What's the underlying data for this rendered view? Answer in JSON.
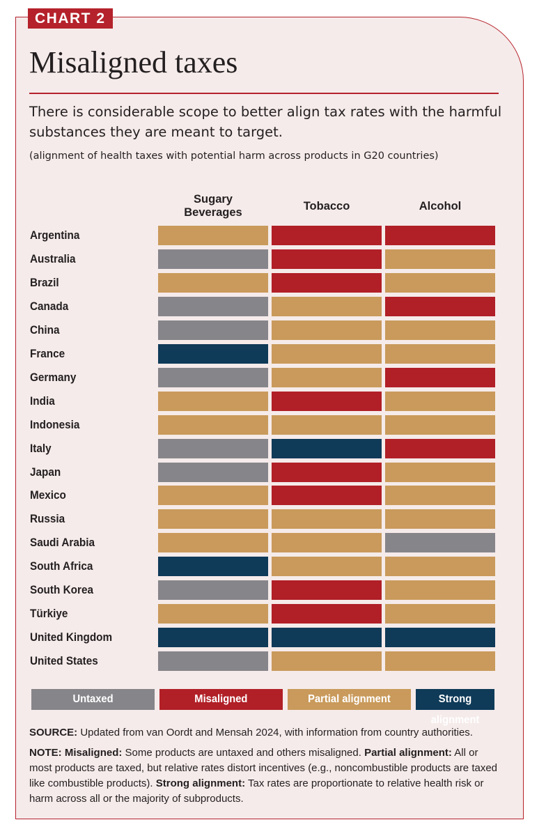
{
  "header": {
    "tag": "CHART 2",
    "title": "Misaligned taxes",
    "subtitle": "There is considerable scope to better align tax rates with the harmful substances they are meant to target.",
    "note": "(alignment of health taxes with potential harm across products in G20 countries)"
  },
  "colors": {
    "Untaxed": "#86858a",
    "Misaligned": "#b11f27",
    "Partial alignment": "#c99a5b",
    "Strong alignment": "#0f3a58"
  },
  "chart_data": {
    "type": "table",
    "columns": [
      "Sugary Beverages",
      "Tobacco",
      "Alcohol"
    ],
    "rows": [
      {
        "country": "Argentina",
        "values": [
          "Partial alignment",
          "Misaligned",
          "Misaligned"
        ]
      },
      {
        "country": "Australia",
        "values": [
          "Untaxed",
          "Misaligned",
          "Partial alignment"
        ]
      },
      {
        "country": "Brazil",
        "values": [
          "Partial alignment",
          "Misaligned",
          "Partial alignment"
        ]
      },
      {
        "country": "Canada",
        "values": [
          "Untaxed",
          "Partial alignment",
          "Misaligned"
        ]
      },
      {
        "country": "China",
        "values": [
          "Untaxed",
          "Partial alignment",
          "Partial alignment"
        ]
      },
      {
        "country": "France",
        "values": [
          "Strong alignment",
          "Partial alignment",
          "Partial alignment"
        ]
      },
      {
        "country": "Germany",
        "values": [
          "Untaxed",
          "Partial alignment",
          "Misaligned"
        ]
      },
      {
        "country": "India",
        "values": [
          "Partial alignment",
          "Misaligned",
          "Partial alignment"
        ]
      },
      {
        "country": "Indonesia",
        "values": [
          "Partial alignment",
          "Partial alignment",
          "Partial alignment"
        ]
      },
      {
        "country": "Italy",
        "values": [
          "Untaxed",
          "Strong alignment",
          "Misaligned"
        ]
      },
      {
        "country": "Japan",
        "values": [
          "Untaxed",
          "Misaligned",
          "Partial alignment"
        ]
      },
      {
        "country": "Mexico",
        "values": [
          "Partial alignment",
          "Misaligned",
          "Partial alignment"
        ]
      },
      {
        "country": "Russia",
        "values": [
          "Partial alignment",
          "Partial alignment",
          "Partial alignment"
        ]
      },
      {
        "country": "Saudi Arabia",
        "values": [
          "Partial alignment",
          "Partial alignment",
          "Untaxed"
        ]
      },
      {
        "country": "South Africa",
        "values": [
          "Strong alignment",
          "Partial alignment",
          "Partial alignment"
        ]
      },
      {
        "country": "South Korea",
        "values": [
          "Untaxed",
          "Misaligned",
          "Partial alignment"
        ]
      },
      {
        "country": "Türkiye",
        "values": [
          "Partial alignment",
          "Misaligned",
          "Partial alignment"
        ]
      },
      {
        "country": "United Kingdom",
        "values": [
          "Strong alignment",
          "Strong alignment",
          "Strong alignment"
        ]
      },
      {
        "country": "United States",
        "values": [
          "Untaxed",
          "Partial alignment",
          "Partial alignment"
        ]
      }
    ],
    "legend": [
      "Untaxed",
      "Misaligned",
      "Partial alignment",
      "Strong alignment"
    ]
  },
  "footer": {
    "source_label": "SOURCE:",
    "source_text": " Updated from van Oordt and Mensah 2024, with information from country authorities.",
    "note_label": "NOTE:",
    "misaligned_label": "Misaligned:",
    "misaligned_text": " Some products are untaxed and others misaligned. ",
    "partial_label": "Partial alignment:",
    "partial_text": " All or most products are taxed, but relative rates distort incentives (e.g., noncombustible products are taxed like combustible products).  ",
    "strong_label": "Strong alignment:",
    "strong_text": " Tax rates are proportionate to relative health risk or harm across all or the majority of subproducts."
  }
}
